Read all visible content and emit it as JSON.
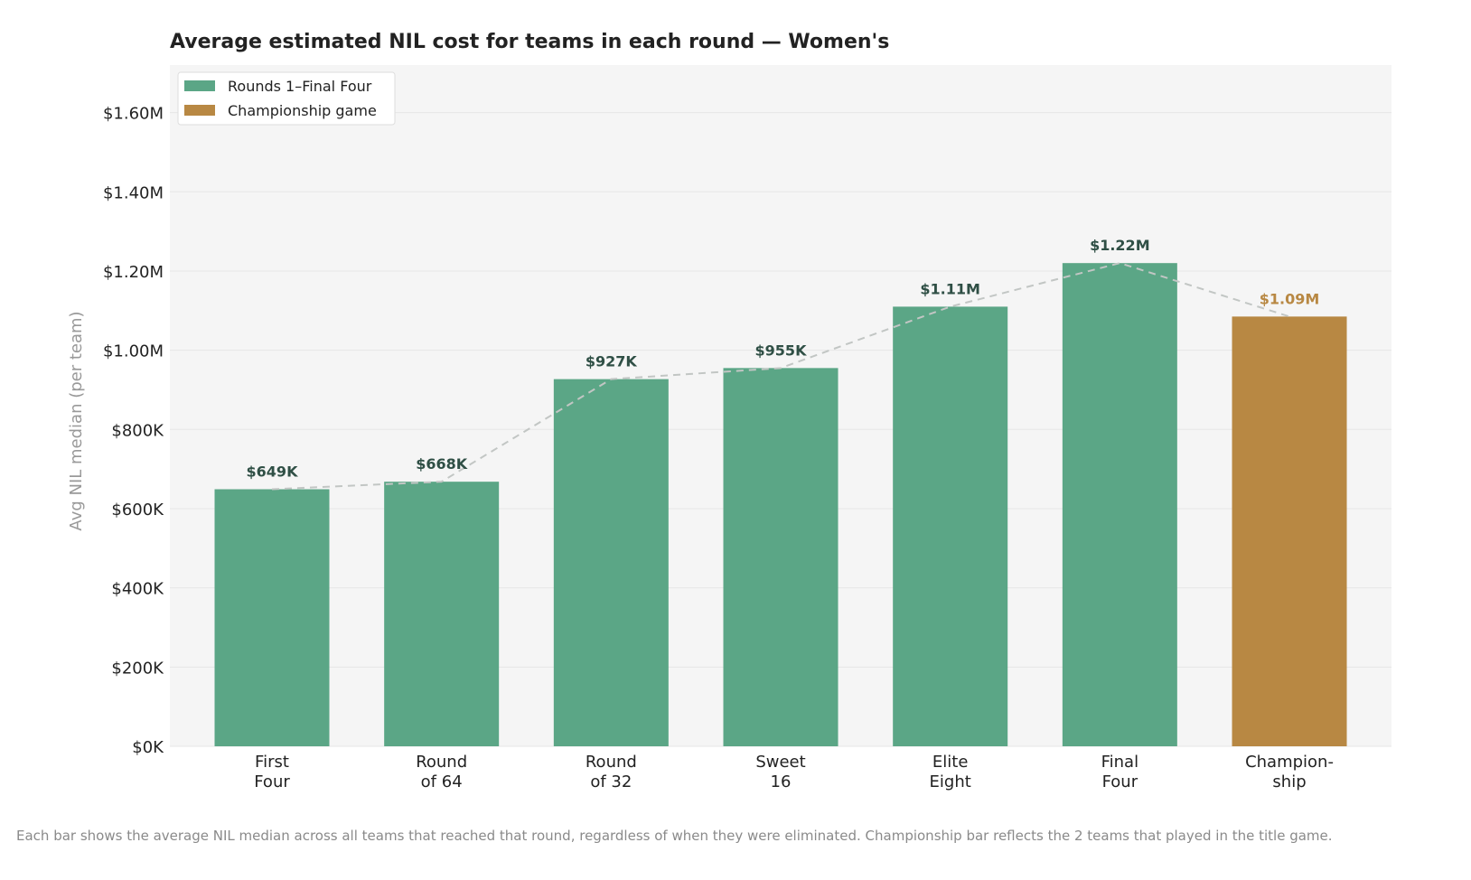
{
  "chart_data": {
    "type": "bar",
    "title": "Average estimated NIL cost for teams in each round — Women's",
    "xlabel": "",
    "ylabel": "Avg NIL median (per team)",
    "ylim": [
      0,
      1720000
    ],
    "yticks": [
      0,
      200000,
      400000,
      600000,
      800000,
      1000000,
      1200000,
      1400000,
      1600000
    ],
    "ytick_labels": [
      "$0K",
      "$200K",
      "$400K",
      "$600K",
      "$800K",
      "$1.00M",
      "$1.20M",
      "$1.40M",
      "$1.60M"
    ],
    "categories": [
      [
        "First",
        "Four"
      ],
      [
        "Round",
        "of 64"
      ],
      [
        "Round",
        "of 32"
      ],
      [
        "Sweet",
        "16"
      ],
      [
        "Elite",
        "Eight"
      ],
      [
        "Final",
        "Four"
      ],
      [
        "Champion-",
        "ship"
      ]
    ],
    "values": [
      649000,
      668000,
      927000,
      955000,
      1110000,
      1220000,
      1085000
    ],
    "value_labels": [
      "$649K",
      "$668K",
      "$927K",
      "$955K",
      "$1.11M",
      "$1.22M",
      "$1.09M"
    ],
    "series_group": [
      "rounds",
      "rounds",
      "rounds",
      "rounds",
      "rounds",
      "rounds",
      "championship"
    ],
    "legend": [
      {
        "key": "rounds",
        "label": "Rounds 1–Final Four",
        "color": "#5ba686"
      },
      {
        "key": "championship",
        "label": "Championship game",
        "color": "#b88843"
      }
    ],
    "legend_position": "top-left",
    "value_label_colors": {
      "rounds": "#2f4f45",
      "championship": "#b88843"
    },
    "trend_line": "dashed connecting bar tops",
    "grid": true,
    "background": "#f5f5f5",
    "footnote": "Each bar shows the average NIL median across all teams that reached that round, regardless of when they were eliminated. Championship bar reflects the 2 teams that played in the title game."
  }
}
